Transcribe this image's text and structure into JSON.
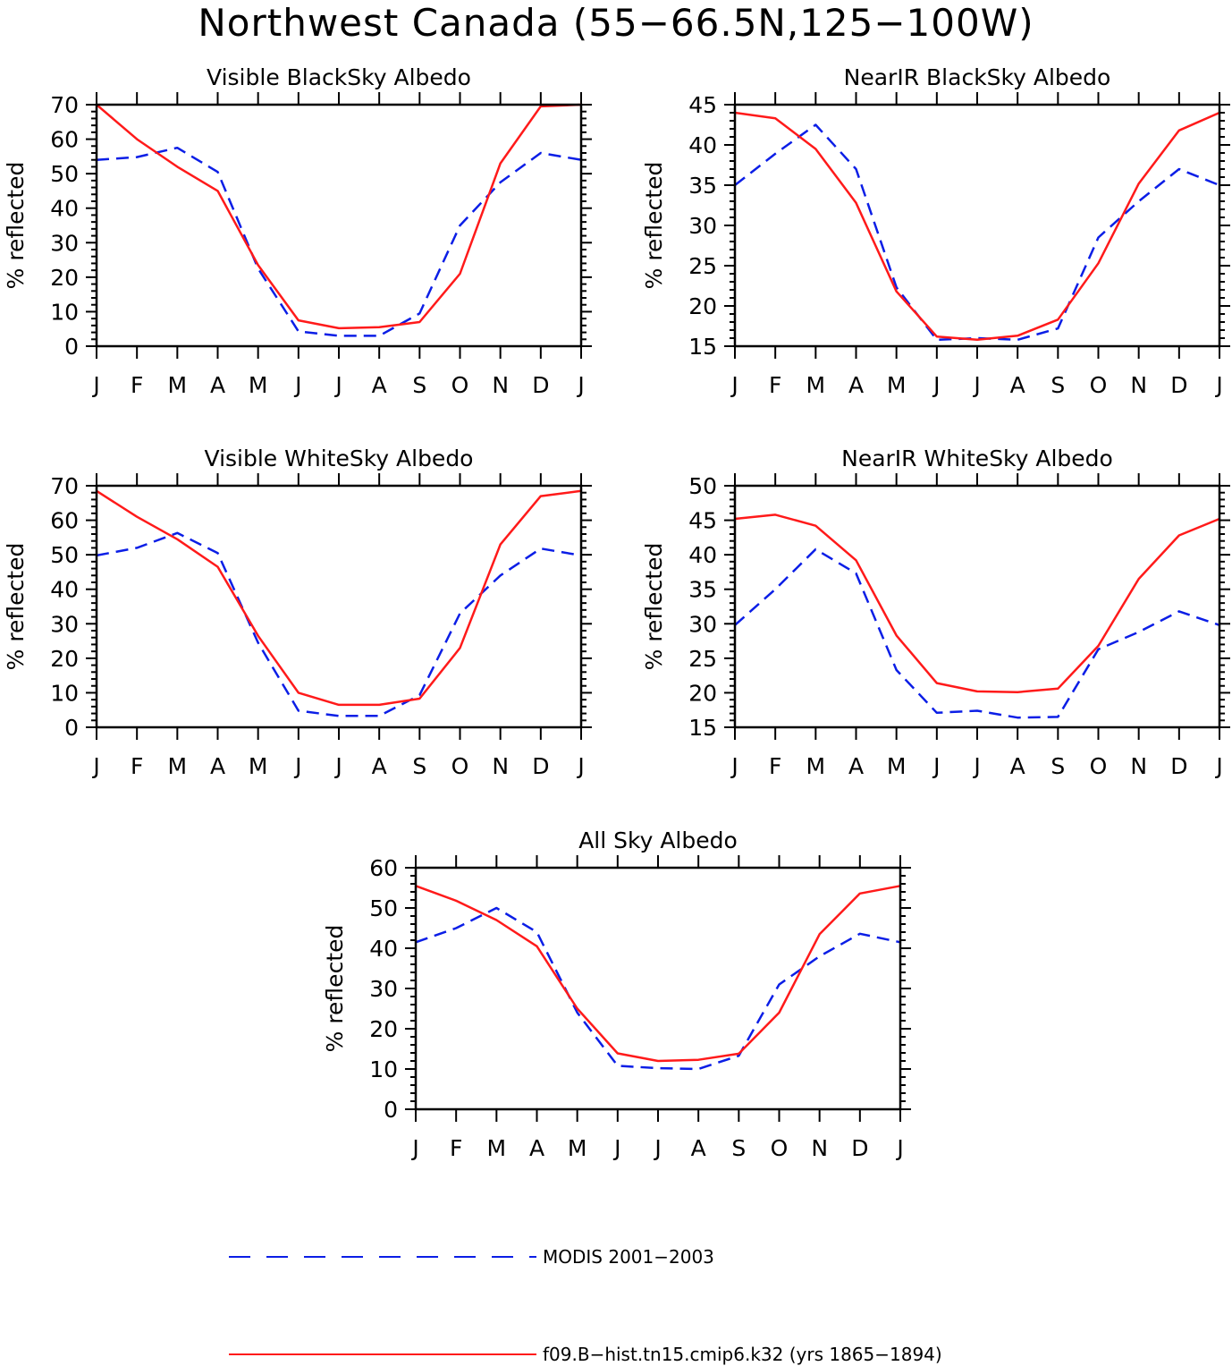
{
  "figure_title": "Northwest Canada (55−66.5N,125−100W)",
  "colors": {
    "model": "#ff1a1a",
    "obs": "#0b1ee6",
    "axes": "#000000"
  },
  "legend": {
    "items": [
      {
        "label": "MODIS 2001−2003",
        "style": "dashed",
        "color": "#0b1ee6"
      },
      {
        "label": "f09.B−hist.tn15.cmip6.k32 (yrs 1865−1894)",
        "style": "solid",
        "color": "#ff1a1a"
      }
    ]
  },
  "chart_data": [
    {
      "type": "line",
      "title": "Visible BlackSky Albedo",
      "ylabel": "% reflected",
      "categories": [
        "J",
        "F",
        "M",
        "A",
        "M",
        "J",
        "J",
        "A",
        "S",
        "O",
        "N",
        "D",
        "J"
      ],
      "ylim": [
        0,
        70
      ],
      "yticks": [
        0,
        10,
        20,
        30,
        40,
        50,
        60,
        70
      ],
      "grid": false,
      "series": [
        {
          "name": "MODIS 2001−2003",
          "style": "dashed",
          "values": [
            54,
            54.8,
            57.5,
            50.5,
            22.5,
            4.3,
            3,
            3,
            9.5,
            35,
            47.5,
            56,
            54
          ]
        },
        {
          "name": "f09.B−hist.tn15.cmip6.k32 (yrs 1865−1894)",
          "style": "solid",
          "values": [
            70,
            60,
            52,
            45,
            23.5,
            7.5,
            5.2,
            5.5,
            7,
            21,
            53,
            69.5,
            70
          ]
        }
      ]
    },
    {
      "type": "line",
      "title": "NearIR BlackSky Albedo",
      "ylabel": "% reflected",
      "categories": [
        "J",
        "F",
        "M",
        "A",
        "M",
        "J",
        "J",
        "A",
        "S",
        "O",
        "N",
        "D",
        "J"
      ],
      "ylim": [
        15,
        45
      ],
      "yticks": [
        15,
        20,
        25,
        30,
        35,
        40,
        45
      ],
      "grid": false,
      "series": [
        {
          "name": "MODIS 2001−2003",
          "style": "dashed",
          "values": [
            35,
            38.9,
            42.5,
            37,
            22.3,
            15.8,
            16,
            15.8,
            17.2,
            28.5,
            33,
            37,
            35
          ]
        },
        {
          "name": "f09.B−hist.tn15.cmip6.k32 (yrs 1865−1894)",
          "style": "solid",
          "values": [
            44,
            43.3,
            39.5,
            32.8,
            21.8,
            16.2,
            15.8,
            16.3,
            18.3,
            25.3,
            35.2,
            41.8,
            44
          ]
        }
      ]
    },
    {
      "type": "line",
      "title": "Visible WhiteSky Albedo",
      "ylabel": "% reflected",
      "categories": [
        "J",
        "F",
        "M",
        "A",
        "M",
        "J",
        "J",
        "A",
        "S",
        "O",
        "N",
        "D",
        "J"
      ],
      "ylim": [
        0,
        70
      ],
      "yticks": [
        0,
        10,
        20,
        30,
        40,
        50,
        60,
        70
      ],
      "grid": false,
      "series": [
        {
          "name": "MODIS 2001−2003",
          "style": "dashed",
          "values": [
            49.8,
            52,
            56.3,
            50.5,
            24.5,
            4.8,
            3.3,
            3.3,
            9.3,
            33,
            44,
            51.8,
            49.8
          ]
        },
        {
          "name": "f09.B−hist.tn15.cmip6.k32 (yrs 1865−1894)",
          "style": "solid",
          "values": [
            68.5,
            61,
            54.5,
            46.5,
            26.5,
            10,
            6.5,
            6.5,
            8.3,
            23,
            53,
            67,
            68.5
          ]
        }
      ]
    },
    {
      "type": "line",
      "title": "NearIR WhiteSky Albedo",
      "ylabel": "% reflected",
      "categories": [
        "J",
        "F",
        "M",
        "A",
        "M",
        "J",
        "J",
        "A",
        "S",
        "O",
        "N",
        "D",
        "J"
      ],
      "ylim": [
        15,
        50
      ],
      "yticks": [
        15,
        20,
        25,
        30,
        35,
        40,
        45,
        50
      ],
      "grid": false,
      "series": [
        {
          "name": "MODIS 2001−2003",
          "style": "dashed",
          "values": [
            29.8,
            35,
            40.8,
            37.3,
            23.3,
            17.1,
            17.4,
            16.4,
            16.5,
            26.3,
            28.8,
            31.8,
            29.8
          ]
        },
        {
          "name": "f09.B−hist.tn15.cmip6.k32 (yrs 1865−1894)",
          "style": "solid",
          "values": [
            45.2,
            45.8,
            44.2,
            39.2,
            28.3,
            21.4,
            20.2,
            20.1,
            20.6,
            26.8,
            36.5,
            42.8,
            45.2
          ]
        }
      ]
    },
    {
      "type": "line",
      "title": "All Sky Albedo",
      "ylabel": "% reflected",
      "categories": [
        "J",
        "F",
        "M",
        "A",
        "M",
        "J",
        "J",
        "A",
        "S",
        "O",
        "N",
        "D",
        "J"
      ],
      "ylim": [
        0,
        60
      ],
      "yticks": [
        0,
        10,
        20,
        30,
        40,
        50,
        60
      ],
      "grid": false,
      "series": [
        {
          "name": "MODIS 2001−2003",
          "style": "dashed",
          "values": [
            41.5,
            45,
            50,
            44,
            24,
            10.8,
            10.2,
            10,
            13.3,
            31,
            38,
            43.6,
            41.5
          ]
        },
        {
          "name": "f09.B−hist.tn15.cmip6.k32 (yrs 1865−1894)",
          "style": "solid",
          "values": [
            55.5,
            51.8,
            47,
            40.5,
            25,
            13.9,
            12,
            12.3,
            13.8,
            24,
            43.5,
            53.6,
            55.5
          ]
        }
      ]
    }
  ]
}
